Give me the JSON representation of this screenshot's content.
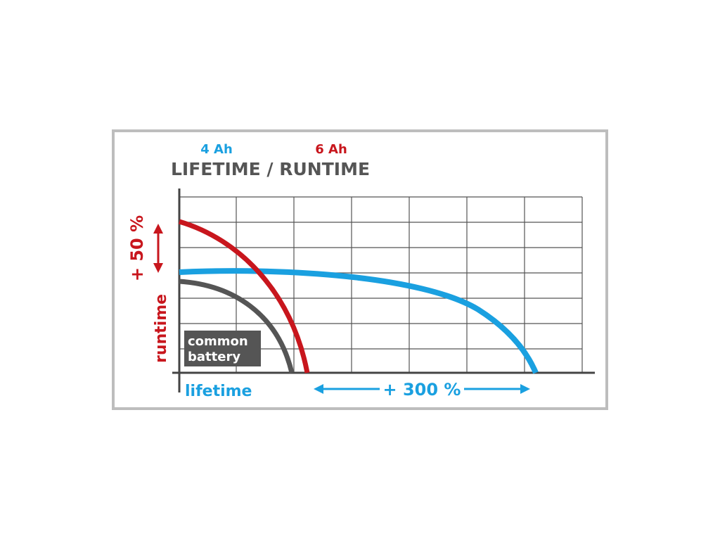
{
  "header": {
    "series_labels": [
      "4 Ah",
      "6 Ah"
    ],
    "title": "LIFETIME / RUNTIME"
  },
  "axes": {
    "y_label": "runtime",
    "x_label": "lifetime"
  },
  "annotations": {
    "runtime_gain": "+ 50 %",
    "lifetime_gain": "+ 300 %",
    "common_battery": [
      "common",
      "battery"
    ]
  }
}
